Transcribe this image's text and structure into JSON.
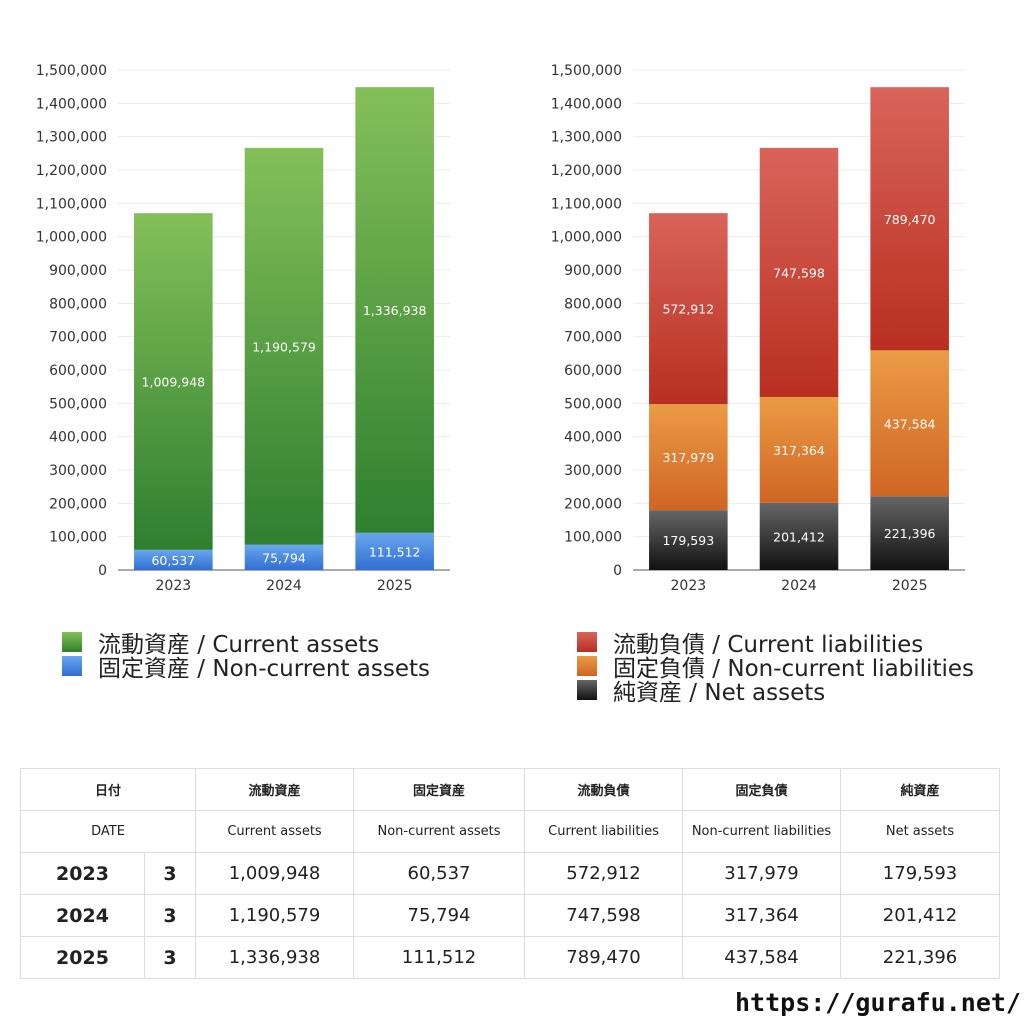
{
  "chart_data": [
    {
      "type": "bar",
      "stacked": true,
      "categories": [
        "2023",
        "2024",
        "2025"
      ],
      "ylim": [
        0,
        1500000
      ],
      "yticks": [
        "0",
        "100,000",
        "200,000",
        "300,000",
        "400,000",
        "500,000",
        "600,000",
        "700,000",
        "800,000",
        "900,000",
        "1,000,000",
        "1,100,000",
        "1,200,000",
        "1,300,000",
        "1,400,000",
        "1,500,000"
      ],
      "grid": true,
      "series": [
        {
          "name": "固定資産 / Non-current assets",
          "values": [
            60537,
            75794,
            111512
          ],
          "labels": [
            "60,537",
            "75,794",
            "111,512"
          ],
          "color_top": "#6aa6ee",
          "color_bottom": "#2f6fd1"
        },
        {
          "name": "流動資産 / Current assets",
          "values": [
            1009948,
            1190579,
            1336938
          ],
          "labels": [
            "1,009,948",
            "1,190,579",
            "1,336,938"
          ],
          "color_top": "#84c059",
          "color_bottom": "#2f7f30"
        }
      ]
    },
    {
      "type": "bar",
      "stacked": true,
      "categories": [
        "2023",
        "2024",
        "2025"
      ],
      "ylim": [
        0,
        1500000
      ],
      "yticks": [
        "0",
        "100,000",
        "200,000",
        "300,000",
        "400,000",
        "500,000",
        "600,000",
        "700,000",
        "800,000",
        "900,000",
        "1,000,000",
        "1,100,000",
        "1,200,000",
        "1,300,000",
        "1,400,000",
        "1,500,000"
      ],
      "grid": true,
      "series": [
        {
          "name": "純資産 / Net assets",
          "values": [
            179593,
            201412,
            221396
          ],
          "labels": [
            "179,593",
            "201,412",
            "221,396"
          ],
          "color_top": "#666666",
          "color_bottom": "#111111"
        },
        {
          "name": "固定負債 / Non-current liabilities",
          "values": [
            317979,
            317364,
            437584
          ],
          "labels": [
            "317,979",
            "317,364",
            "437,584"
          ],
          "color_top": "#eb9b45",
          "color_bottom": "#cf6524"
        },
        {
          "name": "流動負債 / Current liabilities",
          "values": [
            572912,
            747598,
            789470
          ],
          "labels": [
            "572,912",
            "747,598",
            "789,470"
          ],
          "color_top": "#d9645a",
          "color_bottom": "#b82f20"
        }
      ]
    }
  ],
  "legend_left": [
    {
      "label": "流動資産 / Current assets",
      "color_top": "#84c059",
      "color_bottom": "#2f7f30"
    },
    {
      "label": "固定資産 / Non-current assets",
      "color_top": "#6aa6ee",
      "color_bottom": "#2f6fd1"
    }
  ],
  "legend_right": [
    {
      "label": "流動負債 / Current liabilities",
      "color_top": "#d9645a",
      "color_bottom": "#b82f20"
    },
    {
      "label": "固定負債 / Non-current liabilities",
      "color_top": "#eb9b45",
      "color_bottom": "#cf6524"
    },
    {
      "label": "純資産 / Net assets",
      "color_top": "#666666",
      "color_bottom": "#111111"
    }
  ],
  "table": {
    "header_jp": {
      "date": "日付",
      "current_assets": "流動資産",
      "noncurrent_assets": "固定資産",
      "current_liabilities": "流動負債",
      "noncurrent_liabilities": "固定負債",
      "net_assets": "純資産"
    },
    "header_en": {
      "date": "DATE",
      "current_assets": "Current assets",
      "noncurrent_assets": "Non-current assets",
      "current_liabilities": "Current liabilities",
      "noncurrent_liabilities": "Non-current liabilities",
      "net_assets": "Net assets"
    },
    "rows": [
      {
        "year": "2023",
        "month": "3",
        "current_assets": "1,009,948",
        "noncurrent_assets": "60,537",
        "current_liabilities": "572,912",
        "noncurrent_liabilities": "317,979",
        "net_assets": "179,593"
      },
      {
        "year": "2024",
        "month": "3",
        "current_assets": "1,190,579",
        "noncurrent_assets": "75,794",
        "current_liabilities": "747,598",
        "noncurrent_liabilities": "317,364",
        "net_assets": "201,412"
      },
      {
        "year": "2025",
        "month": "3",
        "current_assets": "1,336,938",
        "noncurrent_assets": "111,512",
        "current_liabilities": "789,470",
        "noncurrent_liabilities": "437,584",
        "net_assets": "221,396"
      }
    ]
  },
  "footer": {
    "site": "https://gurafu.net/"
  }
}
